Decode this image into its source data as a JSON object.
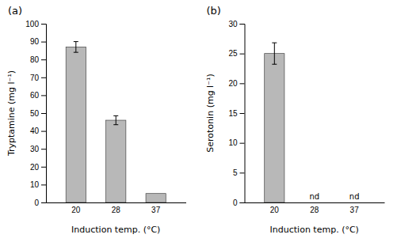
{
  "chart_data": [
    {
      "type": "bar",
      "title": "(a)",
      "categories": [
        "20",
        "28",
        "37"
      ],
      "values": [
        87,
        46,
        5
      ],
      "errors": [
        3,
        2.5,
        0
      ],
      "ylabel": "Tryptamine (mg l⁻¹)",
      "xlabel": "Induction temp. (°C)",
      "ylim": [
        0,
        100
      ],
      "yticks": [
        0,
        10,
        20,
        30,
        40,
        50,
        60,
        70,
        80,
        90,
        100
      ],
      "color": "#b8b8b8",
      "grid": false
    },
    {
      "type": "bar",
      "title": "(b)",
      "categories": [
        "20",
        "28",
        "37"
      ],
      "values": [
        25,
        0,
        0
      ],
      "errors": [
        1.8,
        0,
        0
      ],
      "ylabel": "Serotonin (mg l⁻¹)",
      "xlabel": "Induction temp. (°C)",
      "ylim": [
        0,
        30
      ],
      "yticks": [
        0,
        5,
        10,
        15,
        20,
        25,
        30
      ],
      "color": "#b8b8b8",
      "grid": false,
      "annotations": [
        {
          "text": "nd",
          "x": "28"
        },
        {
          "text": "nd",
          "x": "37"
        }
      ]
    }
  ]
}
